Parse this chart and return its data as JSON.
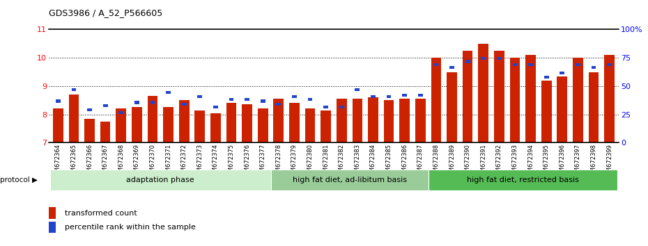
{
  "title": "GDS3986 / A_52_P566605",
  "samples": [
    "GSM672364",
    "GSM672365",
    "GSM672366",
    "GSM672367",
    "GSM672368",
    "GSM672369",
    "GSM672370",
    "GSM672371",
    "GSM672372",
    "GSM672373",
    "GSM672374",
    "GSM672375",
    "GSM672376",
    "GSM672377",
    "GSM672378",
    "GSM672379",
    "GSM672380",
    "GSM672381",
    "GSM672382",
    "GSM672383",
    "GSM672384",
    "GSM672385",
    "GSM672386",
    "GSM672387",
    "GSM672388",
    "GSM672389",
    "GSM672390",
    "GSM672391",
    "GSM672392",
    "GSM672393",
    "GSM672394",
    "GSM672395",
    "GSM672396",
    "GSM672397",
    "GSM672398",
    "GSM672399"
  ],
  "red_values": [
    8.2,
    8.7,
    7.85,
    7.75,
    8.2,
    8.25,
    8.65,
    8.25,
    8.5,
    8.15,
    8.05,
    8.4,
    8.35,
    8.2,
    8.55,
    8.4,
    8.2,
    8.15,
    8.55,
    8.55,
    8.6,
    8.5,
    8.55,
    8.55,
    10.0,
    9.5,
    10.25,
    10.5,
    10.25,
    10.0,
    10.1,
    9.2,
    9.35,
    10.0,
    9.5,
    10.1
  ],
  "blue_values": [
    8.42,
    8.82,
    8.12,
    8.27,
    8.02,
    8.37,
    8.37,
    8.72,
    8.32,
    8.57,
    8.22,
    8.47,
    8.47,
    8.42,
    8.32,
    8.57,
    8.47,
    8.22,
    8.22,
    8.82,
    8.57,
    8.57,
    8.62,
    8.62,
    9.72,
    9.62,
    9.82,
    9.92,
    9.92,
    9.72,
    9.72,
    9.27,
    9.42,
    9.72,
    9.62,
    9.72
  ],
  "groups": [
    {
      "label": "adaptation phase",
      "start": 0,
      "end": 14,
      "color": "#cceecc"
    },
    {
      "label": "high fat diet, ad-libitum basis",
      "start": 14,
      "end": 24,
      "color": "#99cc99"
    },
    {
      "label": "high fat diet, restricted basis",
      "start": 24,
      "end": 36,
      "color": "#55bb55"
    }
  ],
  "ylim": [
    7,
    11
  ],
  "yticks_left": [
    7,
    8,
    9,
    10,
    11
  ],
  "right_tick_positions": [
    7.0,
    8.0,
    9.0,
    10.0,
    11.0
  ],
  "right_tick_labels": [
    "0",
    "25",
    "50",
    "75",
    "100%"
  ],
  "bar_color": "#cc2200",
  "blue_color": "#2244cc",
  "bg_color": "#ffffff",
  "protocol_label": "protocol"
}
